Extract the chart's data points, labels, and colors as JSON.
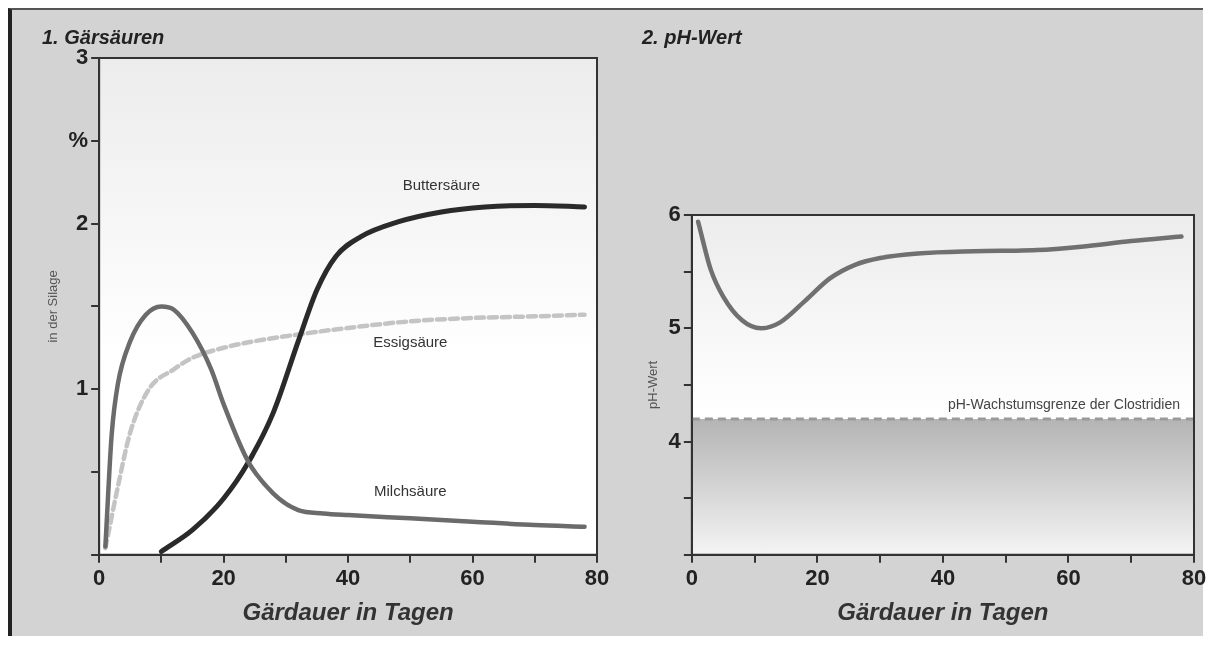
{
  "chart_data": [
    {
      "type": "line",
      "title": "1. Gärsäuren",
      "xlabel": "Gärdauer in Tagen",
      "ylabel": "in der Silage",
      "xlim": [
        0,
        80
      ],
      "ylim": [
        0,
        3
      ],
      "xticks": [
        0,
        {
          "value": 10,
          "label": null
        },
        20,
        {
          "value": 30,
          "label": null
        },
        40,
        {
          "value": 50,
          "label": null
        },
        60,
        {
          "value": 70,
          "label": null
        },
        80
      ],
      "yticks": [
        {
          "value": 0,
          "label": null
        },
        {
          "value": 0.5,
          "label": null
        },
        1,
        {
          "value": 1.5,
          "label": null
        },
        2,
        {
          "value": 2.5,
          "label": "%"
        },
        3
      ],
      "grid": false,
      "legend": false,
      "marker": "none",
      "series": [
        {
          "name": "Milchsäure",
          "color": "#6b6b6b",
          "line_style": "solid",
          "x": [
            1,
            2,
            3,
            5,
            7.5,
            10,
            12,
            15,
            18,
            20,
            24,
            28,
            32,
            36,
            40,
            50,
            60,
            70,
            78
          ],
          "values": [
            0.05,
            0.72,
            1.03,
            1.29,
            1.45,
            1.5,
            1.48,
            1.34,
            1.12,
            0.91,
            0.56,
            0.37,
            0.27,
            0.25,
            0.24,
            0.22,
            0.2,
            0.18,
            0.17
          ]
        },
        {
          "name": "Buttersäure",
          "color": "#2a2a2a",
          "line_style": "solid",
          "x": [
            10,
            15,
            20,
            24,
            28,
            32,
            35,
            38,
            42,
            48,
            55,
            62,
            70,
            78
          ],
          "values": [
            0.02,
            0.15,
            0.34,
            0.56,
            0.86,
            1.29,
            1.6,
            1.8,
            1.92,
            2.01,
            2.07,
            2.1,
            2.11,
            2.1
          ]
        },
        {
          "name": "Essigsäure",
          "color": "#c4c4c4",
          "line_style": "dashed",
          "x": [
            1,
            3,
            5,
            8,
            12,
            15,
            20,
            25,
            30,
            40,
            50,
            60,
            70,
            78
          ],
          "values": [
            0.04,
            0.41,
            0.74,
            1.0,
            1.12,
            1.19,
            1.25,
            1.29,
            1.32,
            1.37,
            1.41,
            1.43,
            1.44,
            1.45
          ]
        }
      ]
    },
    {
      "type": "line",
      "title": "2. pH-Wert",
      "xlabel": "Gärdauer in Tagen",
      "ylabel": "pH-Wert",
      "xlim": [
        0,
        80
      ],
      "ylim": [
        3,
        6
      ],
      "xticks": [
        0,
        {
          "value": 10,
          "label": null
        },
        20,
        {
          "value": 30,
          "label": null
        },
        40,
        {
          "value": 50,
          "label": null
        },
        60,
        {
          "value": 70,
          "label": null
        },
        80
      ],
      "yticks": [
        {
          "value": 3,
          "label": null
        },
        {
          "value": 3.5,
          "label": null
        },
        4,
        {
          "value": 4.5,
          "label": null
        },
        5,
        {
          "value": 5.5,
          "label": null
        },
        6
      ],
      "grid": false,
      "legend": false,
      "marker": "none",
      "ref_lines": [
        {
          "axis": "y",
          "value": 4.2,
          "label": "pH-Wachstumsgrenze der Clostridien",
          "color": "#9a9a9a",
          "line_style": "dashed"
        }
      ],
      "bands": [
        {
          "axis": "y",
          "from": 3,
          "to": 4.2,
          "color": "#b4b4b4"
        }
      ],
      "series": [
        {
          "color": "#707070",
          "line_style": "solid",
          "x": [
            1,
            3,
            5,
            8,
            11,
            14,
            18,
            22,
            26,
            30,
            36,
            45,
            55,
            62,
            70,
            78
          ],
          "values": [
            5.94,
            5.52,
            5.28,
            5.07,
            5.0,
            5.05,
            5.24,
            5.44,
            5.56,
            5.62,
            5.66,
            5.68,
            5.69,
            5.72,
            5.77,
            5.81
          ]
        }
      ]
    }
  ]
}
